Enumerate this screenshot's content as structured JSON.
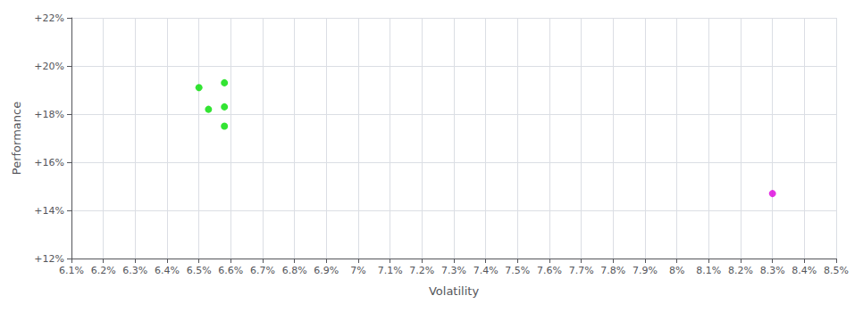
{
  "chart_data": {
    "type": "scatter",
    "xlabel": "Volatility",
    "ylabel": "Performance",
    "xlim": [
      0.061,
      0.085
    ],
    "ylim": [
      0.12,
      0.22
    ],
    "xticks": [
      {
        "value": 0.061,
        "label": "6.1%"
      },
      {
        "value": 0.062,
        "label": "6.2%"
      },
      {
        "value": 0.063,
        "label": "6.3%"
      },
      {
        "value": 0.064,
        "label": "6.4%"
      },
      {
        "value": 0.065,
        "label": "6.5%"
      },
      {
        "value": 0.066,
        "label": "6.6%"
      },
      {
        "value": 0.067,
        "label": "6.7%"
      },
      {
        "value": 0.068,
        "label": "6.8%"
      },
      {
        "value": 0.069,
        "label": "6.9%"
      },
      {
        "value": 0.07,
        "label": "7%"
      },
      {
        "value": 0.071,
        "label": "7.1%"
      },
      {
        "value": 0.072,
        "label": "7.2%"
      },
      {
        "value": 0.073,
        "label": "7.3%"
      },
      {
        "value": 0.074,
        "label": "7.4%"
      },
      {
        "value": 0.075,
        "label": "7.5%"
      },
      {
        "value": 0.076,
        "label": "7.6%"
      },
      {
        "value": 0.077,
        "label": "7.7%"
      },
      {
        "value": 0.078,
        "label": "7.8%"
      },
      {
        "value": 0.079,
        "label": "7.9%"
      },
      {
        "value": 0.08,
        "label": "8%"
      },
      {
        "value": 0.081,
        "label": "8.1%"
      },
      {
        "value": 0.082,
        "label": "8.2%"
      },
      {
        "value": 0.083,
        "label": "8.3%"
      },
      {
        "value": 0.084,
        "label": "8.4%"
      },
      {
        "value": 0.085,
        "label": "8.5%"
      }
    ],
    "yticks": [
      {
        "value": 0.12,
        "label": "+12%"
      },
      {
        "value": 0.14,
        "label": "+14%"
      },
      {
        "value": 0.16,
        "label": "+16%"
      },
      {
        "value": 0.18,
        "label": "+18%"
      },
      {
        "value": 0.2,
        "label": "+20%"
      },
      {
        "value": 0.22,
        "label": "+22%"
      }
    ],
    "grid": true,
    "series": [
      {
        "color": "#00dd00",
        "x": [
          0.065,
          0.0658,
          0.0653,
          0.0658,
          0.0658
        ],
        "values": [
          0.191,
          0.193,
          0.182,
          0.183,
          0.175
        ]
      },
      {
        "color": "#dd00dd",
        "x": [
          0.083
        ],
        "values": [
          0.147
        ]
      }
    ]
  }
}
